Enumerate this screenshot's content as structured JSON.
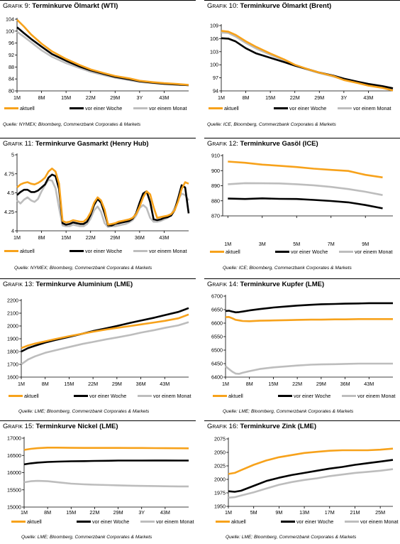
{
  "colors": {
    "aktuell": "#F7A21B",
    "woche": "#000000",
    "monat": "#BDBDBD"
  },
  "charts": [
    {
      "prefix": "Grafik",
      "number": "9:",
      "title": "Terminkurve Ölmarkt (WTI)",
      "source": "Quelle: NYMEX; Bloomberg, Commerzbank Corporates & Markets",
      "legend": [
        "aktuell",
        "vor einer Woche",
        "vor einem Monat"
      ]
    },
    {
      "prefix": "Grafik",
      "number": "10:",
      "title": "Terminkurve Ölmarkt (Brent)",
      "source": "Quelle: ICE, Bloomberg, Commerzbank Corporates & Markets",
      "legend": [
        "aktuell",
        "vor einer Woche",
        "vor einem Monat"
      ]
    },
    {
      "prefix": "Grafik",
      "number": "11:",
      "title": "Terminkurve Gasmarkt (Henry Hub)",
      "source": "Quelle: NYMEX; Bloomberg, Commerzbank Corporates & Markets",
      "legend": [
        "aktuell",
        "vor einer Woche",
        "vor einem Monat"
      ]
    },
    {
      "prefix": "Grafik",
      "number": "12:",
      "title": "Terminkurve Gasöl (ICE)",
      "source": "Quelle: ICE; Bloomberg, Commerzbank Corporates & Markets",
      "legend": [
        "aktuell",
        "vor einer Woche",
        "vor einem Monat"
      ]
    },
    {
      "prefix": "Grafik",
      "number": "13:",
      "title": "Terminkurve Aluminium (LME)",
      "source": "Quelle: LME; Bloomberg, Commerzbank Corporates & Markets",
      "legend": [
        "aktuell",
        "vor einer Woche",
        "vor einem Monat"
      ]
    },
    {
      "prefix": "Grafik",
      "number": "14:",
      "title": "Terminkurve Kupfer (LME)",
      "source": "Quelle: LME; Bloomberg, Commerzbank Corporates & Markets",
      "legend": [
        "aktuell",
        "vor einer Woche",
        "vor einem Monat"
      ]
    },
    {
      "prefix": "Grafik",
      "number": "15:",
      "title": "Terminkurve Nickel (LME)",
      "source": "Quelle: LME; Bloomberg, Commerzbank Corporates & Markets",
      "legend": [
        "aktuell",
        "vor einer Woche",
        "vor einem Monat"
      ]
    },
    {
      "prefix": "Grafik",
      "number": "16:",
      "title": "Terminkurve Zink (LME)",
      "source": "Quelle: LME; Bloomberg, Commerzbank Corporates & Markets",
      "legend": [
        "aktuell",
        "vor einer Woche",
        "vor einem Monat"
      ]
    }
  ],
  "chart_data": [
    {
      "type": "line",
      "title": "Terminkurve Ölmarkt (WTI)",
      "x_tick_labels": [
        "1M",
        "8M",
        "15M",
        "22M",
        "29M",
        "3Y",
        "43M"
      ],
      "ylim": [
        80,
        104
      ],
      "y_ticks": [
        80,
        84,
        88,
        92,
        96,
        100,
        104
      ],
      "xlim": [
        1,
        50
      ],
      "x": [
        1,
        3,
        5,
        8,
        11,
        15,
        19,
        22,
        26,
        29,
        33,
        36,
        40,
        43,
        47,
        50
      ],
      "series": [
        {
          "name": "aktuell",
          "values": [
            103.8,
            101.5,
            98.9,
            95.8,
            93.2,
            90.7,
            88.6,
            87.2,
            85.9,
            85.0,
            84.2,
            83.4,
            82.9,
            82.6,
            82.3,
            82.0
          ]
        },
        {
          "name": "vor einer Woche",
          "values": [
            101.3,
            99.3,
            97.4,
            94.8,
            92.3,
            90.1,
            88.1,
            86.9,
            85.6,
            84.7,
            83.9,
            83.2,
            82.7,
            82.4,
            82.1,
            81.9
          ]
        },
        {
          "name": "vor einem Monat",
          "values": [
            99.8,
            98.1,
            96.3,
            93.6,
            91.4,
            89.3,
            87.6,
            86.4,
            85.2,
            84.4,
            83.6,
            83.0,
            82.6,
            82.3,
            82.1,
            81.9
          ]
        }
      ],
      "grid": false,
      "legend": "bottom"
    },
    {
      "type": "line",
      "title": "Terminkurve Ölmarkt (Brent)",
      "x_tick_labels": [
        "1M",
        "8M",
        "15M",
        "22M",
        "29M",
        "3Y",
        "43M"
      ],
      "ylim": [
        94,
        109
      ],
      "y_ticks": [
        94,
        97,
        100,
        103,
        106,
        109
      ],
      "xlim": [
        1,
        50
      ],
      "x": [
        1,
        3,
        5,
        8,
        11,
        15,
        19,
        22,
        26,
        29,
        33,
        36,
        40,
        43,
        47,
        50
      ],
      "series": [
        {
          "name": "aktuell",
          "values": [
            107.8,
            107.6,
            106.9,
            105.4,
            104.1,
            102.6,
            101.2,
            100.0,
            98.9,
            98.2,
            97.4,
            96.5,
            95.8,
            95.2,
            94.7,
            94.1
          ]
        },
        {
          "name": "vor einer Woche",
          "values": [
            106.1,
            106.0,
            105.4,
            103.8,
            102.6,
            101.6,
            100.6,
            99.8,
            98.9,
            98.2,
            97.5,
            96.8,
            96.1,
            95.6,
            95.1,
            94.6
          ]
        },
        {
          "name": "vor einem Monat",
          "values": [
            107.4,
            107.3,
            106.5,
            105.0,
            103.7,
            102.3,
            101.0,
            99.8,
            98.8,
            98.1,
            97.3,
            96.6,
            95.9,
            95.4,
            94.9,
            94.4
          ]
        }
      ],
      "grid": false,
      "legend": "bottom"
    },
    {
      "type": "line",
      "title": "Terminkurve Gasmarkt (Henry Hub)",
      "x_tick_labels": [
        "1M",
        "8M",
        "15M",
        "22M",
        "29M",
        "36M",
        "43M"
      ],
      "ylim": [
        4.0,
        5.0
      ],
      "y_ticks": [
        4.0,
        4.25,
        4.5,
        4.75,
        5.0
      ],
      "xlim": [
        1,
        50
      ],
      "x": [
        1,
        2,
        3,
        4,
        5,
        6,
        7,
        8,
        9,
        10,
        11,
        12,
        13,
        14,
        15,
        16,
        17,
        18,
        19,
        20,
        21,
        22,
        23,
        24,
        25,
        26,
        27,
        28,
        29,
        30,
        31,
        32,
        33,
        34,
        35,
        36,
        37,
        38,
        39,
        40,
        41,
        42,
        43,
        44,
        45,
        46,
        47,
        48,
        49,
        50
      ],
      "series": [
        {
          "name": "aktuell",
          "values": [
            4.57,
            4.61,
            4.63,
            4.64,
            4.62,
            4.61,
            4.63,
            4.66,
            4.7,
            4.78,
            4.82,
            4.78,
            4.62,
            4.13,
            4.11,
            4.12,
            4.14,
            4.13,
            4.12,
            4.12,
            4.16,
            4.24,
            4.37,
            4.44,
            4.4,
            4.28,
            4.08,
            4.09,
            4.1,
            4.12,
            4.13,
            4.14,
            4.15,
            4.17,
            4.22,
            4.32,
            4.44,
            4.52,
            4.48,
            4.31,
            4.17,
            4.18,
            4.19,
            4.2,
            4.22,
            4.27,
            4.39,
            4.55,
            4.64,
            4.62
          ]
        },
        {
          "name": "vor einer Woche",
          "values": [
            4.47,
            4.51,
            4.54,
            4.54,
            4.51,
            4.51,
            4.53,
            4.57,
            4.61,
            4.7,
            4.74,
            4.72,
            4.55,
            4.1,
            4.08,
            4.09,
            4.11,
            4.1,
            4.09,
            4.09,
            4.12,
            4.21,
            4.34,
            4.42,
            4.37,
            4.23,
            4.07,
            4.07,
            4.09,
            4.1,
            4.11,
            4.12,
            4.13,
            4.16,
            4.23,
            4.37,
            4.49,
            4.52,
            4.38,
            4.15,
            4.14,
            4.15,
            4.17,
            4.18,
            4.2,
            4.27,
            4.43,
            4.6,
            4.57,
            4.23
          ]
        },
        {
          "name": "vor einem Monat",
          "values": [
            4.4,
            4.36,
            4.41,
            4.44,
            4.4,
            4.38,
            4.42,
            4.52,
            4.6,
            4.67,
            4.66,
            4.56,
            4.3,
            4.07,
            4.06,
            4.06,
            4.08,
            4.07,
            4.06,
            4.06,
            4.09,
            4.16,
            4.27,
            4.32,
            4.25,
            4.1,
            4.05,
            4.06,
            4.06,
            4.07,
            4.08,
            4.09,
            4.11,
            4.14,
            4.2,
            4.3,
            4.34,
            4.3,
            4.17,
            4.12,
            4.12,
            4.13,
            4.15,
            4.17,
            4.21,
            4.3,
            4.41,
            4.49,
            4.47,
            4.4
          ]
        }
      ],
      "grid": false,
      "legend": "bottom"
    },
    {
      "type": "line",
      "title": "Terminkurve Gasöl (ICE)",
      "x_tick_labels": [
        "1M",
        "3M",
        "5M",
        "7M",
        "9M"
      ],
      "ylim": [
        870,
        910
      ],
      "y_ticks": [
        870,
        880,
        890,
        900,
        910
      ],
      "xlim": [
        0.7,
        10.6
      ],
      "x": [
        1,
        2,
        3,
        4,
        5,
        6,
        7,
        8,
        9,
        10
      ],
      "series": [
        {
          "name": "aktuell",
          "values": [
            906.0,
            905.2,
            904.0,
            903.2,
            902.4,
            901.3,
            900.5,
            899.8,
            897.2,
            895.5
          ]
        },
        {
          "name": "vor einer Woche",
          "values": [
            881.5,
            881.2,
            881.6,
            881.3,
            881.2,
            880.6,
            879.9,
            879.0,
            877.2,
            875.0
          ]
        },
        {
          "name": "vor einem Monat",
          "values": [
            891.0,
            891.7,
            891.6,
            891.5,
            891.0,
            890.3,
            889.2,
            887.8,
            886.0,
            883.8
          ]
        }
      ],
      "grid": false,
      "legend": "bottom"
    },
    {
      "type": "line",
      "title": "Terminkurve Aluminium (LME)",
      "x_tick_labels": [
        "1M",
        "8M",
        "15M",
        "22M",
        "29M",
        "36M",
        "43M"
      ],
      "ylim": [
        1600,
        2200
      ],
      "y_ticks": [
        1600,
        1700,
        1800,
        1900,
        2000,
        2100,
        2200
      ],
      "xlim": [
        1,
        50
      ],
      "x": [
        1,
        3,
        5,
        8,
        11,
        15,
        19,
        22,
        26,
        29,
        33,
        36,
        40,
        43,
        47,
        50
      ],
      "series": [
        {
          "name": "aktuell",
          "values": [
            1827,
            1847,
            1862,
            1880,
            1898,
            1920,
            1940,
            1955,
            1973,
            1985,
            2000,
            2012,
            2028,
            2040,
            2060,
            2090
          ]
        },
        {
          "name": "vor einer Woche",
          "values": [
            1800,
            1827,
            1845,
            1870,
            1890,
            1915,
            1940,
            1960,
            1982,
            2000,
            2025,
            2042,
            2065,
            2085,
            2110,
            2140
          ]
        },
        {
          "name": "vor einem Monat",
          "values": [
            1700,
            1738,
            1762,
            1790,
            1810,
            1835,
            1860,
            1875,
            1896,
            1910,
            1930,
            1948,
            1968,
            1985,
            2005,
            2030
          ]
        }
      ],
      "grid": false,
      "legend": "bottom"
    },
    {
      "type": "line",
      "title": "Terminkurve Kupfer (LME)",
      "x_tick_labels": [
        "1M",
        "8M",
        "15M",
        "22M",
        "29M",
        "36M",
        "43M"
      ],
      "ylim": [
        6400,
        6700
      ],
      "y_ticks": [
        6400,
        6450,
        6500,
        6550,
        6600,
        6650,
        6700
      ],
      "xlim": [
        1,
        50
      ],
      "x": [
        1,
        2,
        3,
        4,
        5,
        6,
        8,
        11,
        15,
        19,
        22,
        26,
        29,
        33,
        36,
        40,
        43,
        47,
        50
      ],
      "series": [
        {
          "name": "aktuell",
          "values": [
            6622,
            6623,
            6618,
            6612,
            6610,
            6608,
            6607,
            6609,
            6610,
            6611,
            6612,
            6613,
            6613,
            6614,
            6614,
            6615,
            6615,
            6615,
            6615
          ]
        },
        {
          "name": "vor einer Woche",
          "values": [
            6645,
            6646,
            6643,
            6640,
            6641,
            6643,
            6647,
            6652,
            6658,
            6662,
            6665,
            6668,
            6670,
            6671,
            6672,
            6673,
            6674,
            6674,
            6674
          ]
        },
        {
          "name": "vor einem Monat",
          "values": [
            6440,
            6430,
            6420,
            6413,
            6412,
            6416,
            6422,
            6430,
            6436,
            6440,
            6443,
            6446,
            6447,
            6448,
            6449,
            6450,
            6450,
            6450,
            6450
          ]
        }
      ],
      "grid": false,
      "legend": "bottom"
    },
    {
      "type": "line",
      "title": "Terminkurve Nickel (LME)",
      "x_tick_labels": [
        "1M",
        "8M",
        "15M",
        "22M",
        "29M",
        "3Y",
        "43M"
      ],
      "ylim": [
        15000,
        17000
      ],
      "y_ticks": [
        15000,
        15500,
        16000,
        16500,
        17000
      ],
      "xlim": [
        1,
        50
      ],
      "x": [
        1,
        3,
        5,
        8,
        11,
        15,
        19,
        22,
        26,
        29,
        33,
        36,
        40,
        43,
        47,
        50
      ],
      "series": [
        {
          "name": "aktuell",
          "values": [
            16660,
            16690,
            16710,
            16725,
            16725,
            16720,
            16718,
            16718,
            16718,
            16718,
            16715,
            16715,
            16712,
            16710,
            16708,
            16705
          ]
        },
        {
          "name": "vor einer Woche",
          "values": [
            16240,
            16270,
            16290,
            16310,
            16320,
            16330,
            16335,
            16340,
            16345,
            16350,
            16350,
            16350,
            16352,
            16352,
            16350,
            16350
          ]
        },
        {
          "name": "vor einem Monat",
          "values": [
            15720,
            15750,
            15760,
            15750,
            15720,
            15680,
            15660,
            15650,
            15640,
            15630,
            15620,
            15615,
            15610,
            15605,
            15600,
            15600
          ]
        }
      ],
      "grid": false,
      "legend": "bottom"
    },
    {
      "type": "line",
      "title": "Terminkurve Zink (LME)",
      "x_tick_labels": [
        "1M",
        "5M",
        "9M",
        "13M",
        "17M",
        "21M",
        "25M"
      ],
      "ylim": [
        1950,
        2075
      ],
      "y_ticks": [
        1950,
        1975,
        2000,
        2025,
        2050,
        2075
      ],
      "xlim": [
        1,
        27
      ],
      "x": [
        1,
        2,
        3,
        5,
        7,
        9,
        11,
        13,
        15,
        17,
        19,
        21,
        23,
        25,
        27
      ],
      "series": [
        {
          "name": "aktuell",
          "values": [
            2010,
            2012,
            2017,
            2027,
            2035,
            2041,
            2045,
            2049,
            2051,
            2053,
            2054,
            2054,
            2054,
            2055,
            2057
          ]
        },
        {
          "name": "vor einer Woche",
          "values": [
            1978,
            1977,
            1979,
            1988,
            1997,
            2003,
            2008,
            2012,
            2016,
            2020,
            2023,
            2027,
            2030,
            2033,
            2036
          ]
        },
        {
          "name": "vor einem Monat",
          "values": [
            1966,
            1967,
            1970,
            1976,
            1983,
            1990,
            1995,
            1999,
            2002,
            2006,
            2009,
            2012,
            2014,
            2016,
            2019
          ]
        }
      ],
      "grid": false,
      "legend": "bottom"
    }
  ]
}
